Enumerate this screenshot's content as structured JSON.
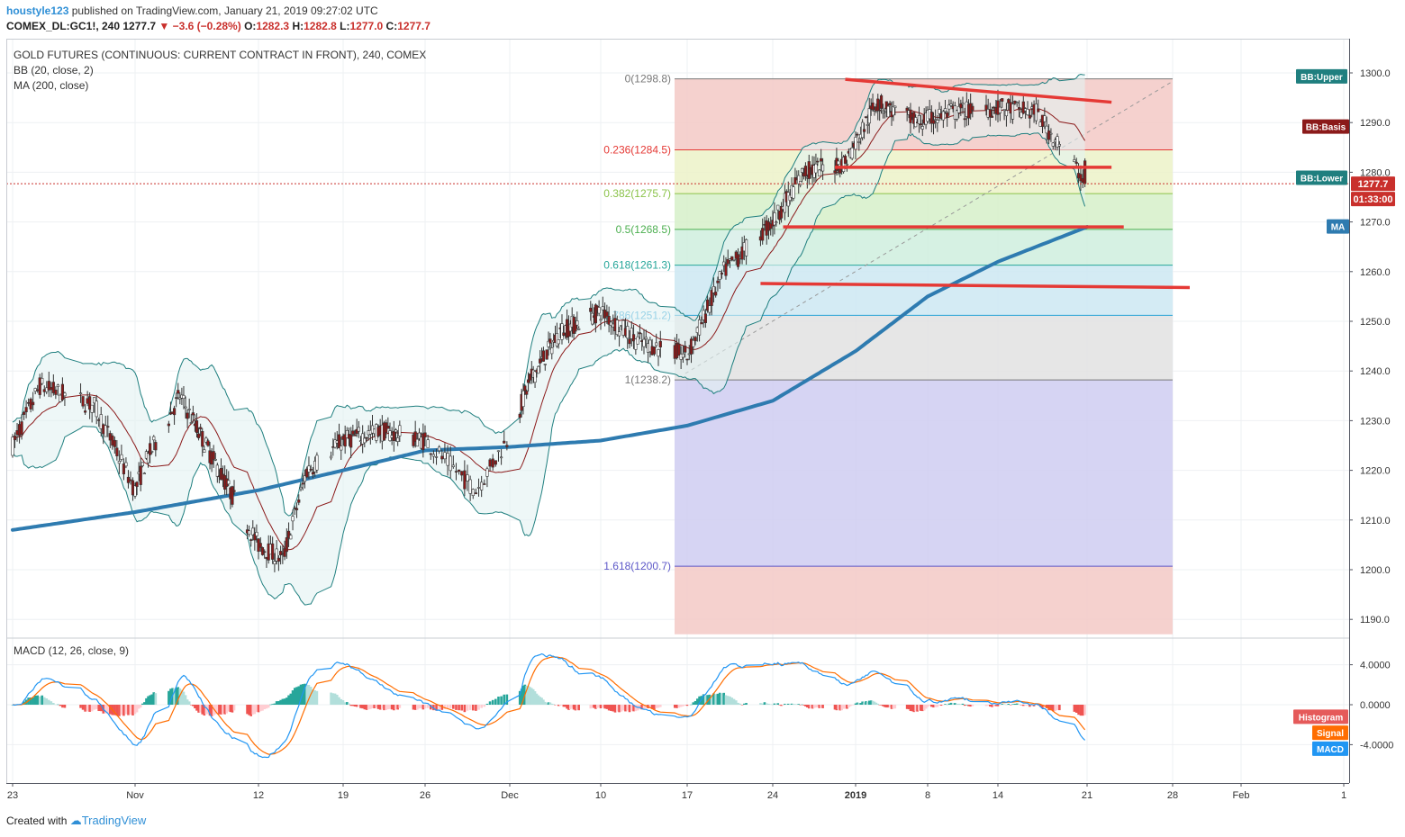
{
  "header": {
    "author": "houstyle123",
    "published": "published on TradingView.com, January 21, 2019 09:27:02 UTC",
    "symbol": "COMEX_DL:GC1!, 240",
    "last": "1277.7",
    "change": "−3.6 (−0.28%)",
    "o_label": "O:",
    "o": "1282.3",
    "h_label": "H:",
    "h": "1282.8",
    "l_label": "L:",
    "l": "1277.0",
    "c_label": "C:",
    "c": "1277.7"
  },
  "indicators": {
    "title": "GOLD FUTURES (CONTINUOUS: CURRENT CONTRACT IN FRONT), 240, COMEX",
    "bb": "BB (20, close, 2)",
    "ma": "MA (200, close)",
    "macd": "MACD (12, 26, close, 9)"
  },
  "price_axis": {
    "ticks": [
      "1300.0",
      "1290.0",
      "1280.0",
      "1270.0",
      "1260.0",
      "1250.0",
      "1240.0",
      "1230.0",
      "1220.0",
      "1210.0",
      "1200.0",
      "1190.0"
    ],
    "tick_values": [
      1300,
      1290,
      1280,
      1270,
      1260,
      1250,
      1240,
      1230,
      1220,
      1210,
      1200,
      1190
    ],
    "last_price": "1277.7",
    "countdown": "01:33:00",
    "tags": {
      "bb_upper": "BB:Upper",
      "bb_basis": "BB:Basis",
      "bb_lower": "BB:Lower",
      "ma": "MA"
    }
  },
  "macd_axis": {
    "ticks": [
      "4.0000",
      "0.0000",
      "-4.0000"
    ],
    "tick_values": [
      4,
      0,
      -4
    ],
    "tags": {
      "histogram": "Histogram",
      "signal": "Signal",
      "macd": "MACD"
    }
  },
  "time_axis": {
    "labels": [
      "23",
      "Nov",
      "12",
      "19",
      "26",
      "Dec",
      "10",
      "17",
      "24",
      "2019",
      "8",
      "14",
      "21",
      "28",
      "Feb",
      "1"
    ],
    "bold": [
      "2019"
    ]
  },
  "fibonacci": {
    "levels": [
      {
        "label": "0(1298.8)",
        "price": 1298.8,
        "color": "#787878"
      },
      {
        "label": "0.236(1284.5)",
        "price": 1284.5,
        "color": "#e53935"
      },
      {
        "label": "0.382(1275.7)",
        "price": 1275.7,
        "color": "#8bc34a"
      },
      {
        "label": "0.5(1268.5)",
        "price": 1268.5,
        "color": "#4caf50"
      },
      {
        "label": "0.618(1261.3)",
        "price": 1261.3,
        "color": "#26a69a"
      },
      {
        "label": "0.786(1251.2)",
        "price": 1251.2,
        "color": "#29a3d6"
      },
      {
        "label": "1(1238.2)",
        "price": 1238.2,
        "color": "#787878"
      },
      {
        "label": "1.618(1200.7)",
        "price": 1200.7,
        "color": "#5c57c8"
      }
    ]
  },
  "colors": {
    "bb_basis": "#8b1a1a",
    "bb_band": "#1f7f7f",
    "ma": "#2e7bb0",
    "up": "#26a69a",
    "down": "#ef5350",
    "macd": "#2196f3",
    "signal": "#ff6d00",
    "trendline": "#e53935"
  },
  "chart_data": {
    "type": "candlestick",
    "title": "GOLD FUTURES (CONTINUOUS: CURRENT CONTRACT IN FRONT), 240, COMEX",
    "timeframe": "240",
    "x_range": [
      "Oct 23, 2018",
      "Feb 1, 2019"
    ],
    "y_range": [
      1187,
      1303
    ],
    "grid": true,
    "approx_close_path": [
      [
        "Oct 23",
        1225
      ],
      [
        "Oct 25",
        1237
      ],
      [
        "Oct 29",
        1233
      ],
      [
        "Nov 1",
        1216
      ],
      [
        "Nov 2",
        1222
      ],
      [
        "Nov 5",
        1235
      ],
      [
        "Nov 8",
        1222
      ],
      [
        "Nov 12",
        1205
      ],
      [
        "Nov 14",
        1202
      ],
      [
        "Nov 16",
        1220
      ],
      [
        "Nov 19",
        1226
      ],
      [
        "Nov 22",
        1228
      ],
      [
        "Nov 26",
        1226
      ],
      [
        "Nov 29",
        1216
      ],
      [
        "Dec 3",
        1238
      ],
      [
        "Dec 6",
        1248
      ],
      [
        "Dec 10",
        1252
      ],
      [
        "Dec 13",
        1246
      ],
      [
        "Dec 17",
        1243
      ],
      [
        "Dec 20",
        1260
      ],
      [
        "Dec 24",
        1270
      ],
      [
        "Dec 27",
        1280
      ],
      [
        "Dec 31",
        1282
      ],
      [
        "Jan 3",
        1294
      ],
      [
        "Jan 7",
        1290
      ],
      [
        "Jan 10",
        1292
      ],
      [
        "Jan 14",
        1293
      ],
      [
        "Jan 17",
        1292
      ],
      [
        "Jan 21",
        1277.7
      ]
    ],
    "moving_average_200": [
      [
        "Oct 23",
        1208
      ],
      [
        "Nov 12",
        1216
      ],
      [
        "Nov 26",
        1224
      ],
      [
        "Dec 10",
        1226
      ],
      [
        "Dec 17",
        1229
      ],
      [
        "Dec 24",
        1234
      ],
      [
        "Jan 1",
        1244
      ],
      [
        "Jan 8",
        1255
      ],
      [
        "Jan 14",
        1262
      ],
      [
        "Jan 21",
        1269
      ]
    ],
    "fibonacci_retracement": {
      "from": 1238.2,
      "to": 1298.8
    },
    "drawn_lines": [
      {
        "from": [
          "Dec 31",
          1298.7
        ],
        "to": [
          "Jan 23",
          1294.1
        ]
      },
      {
        "from": [
          "Dec 30",
          1281
        ],
        "to": [
          "Jan 23",
          1281
        ]
      },
      {
        "from": [
          "Dec 25",
          1269
        ],
        "to": [
          "Jan 24",
          1269
        ]
      },
      {
        "from": [
          "Dec 23",
          1257.6
        ],
        "to": [
          "Jan 29",
          1256.8
        ]
      }
    ],
    "macd_panel": {
      "ylim": [
        -6,
        7.5
      ],
      "last_histogram": "negative"
    }
  }
}
